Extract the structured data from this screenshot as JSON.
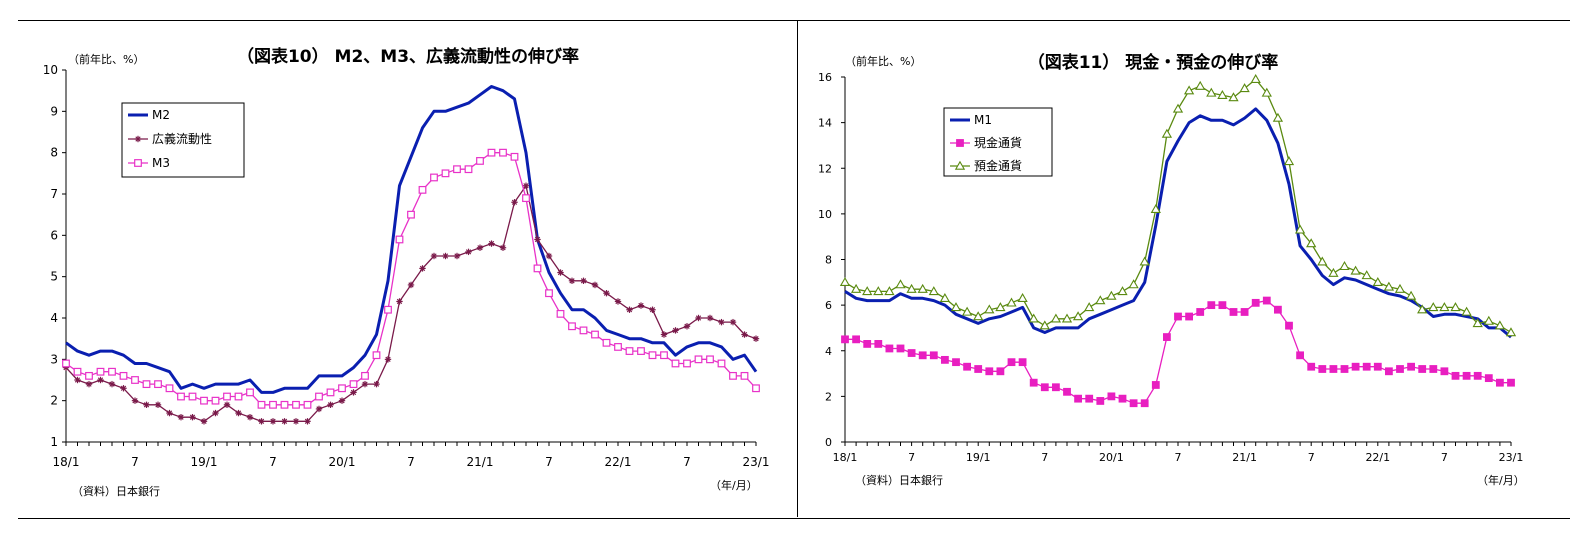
{
  "chart_data": [
    {
      "type": "line",
      "title": "（図表10） M2、M3、広義流動性の伸び率",
      "unit_label": "（前年比、%）",
      "source": "（資料）日本銀行",
      "x_unit_label": "（年/月）",
      "ylim": [
        1,
        10
      ],
      "y_ticks": [
        "1",
        "2",
        "3",
        "4",
        "5",
        "6",
        "7",
        "8",
        "9",
        "10"
      ],
      "x_tick_labels": [
        "18/1",
        "7",
        "19/1",
        "7",
        "20/1",
        "7",
        "21/1",
        "7",
        "22/1",
        "7",
        "23/1"
      ],
      "x": [
        "18/1",
        "18/2",
        "18/3",
        "18/4",
        "18/5",
        "18/6",
        "18/7",
        "18/8",
        "18/9",
        "18/10",
        "18/11",
        "18/12",
        "19/1",
        "19/2",
        "19/3",
        "19/4",
        "19/5",
        "19/6",
        "19/7",
        "19/8",
        "19/9",
        "19/10",
        "19/11",
        "19/12",
        "20/1",
        "20/2",
        "20/3",
        "20/4",
        "20/5",
        "20/6",
        "20/7",
        "20/8",
        "20/9",
        "20/10",
        "20/11",
        "20/12",
        "21/1",
        "21/2",
        "21/3",
        "21/4",
        "21/5",
        "21/6",
        "21/7",
        "21/8",
        "21/9",
        "21/10",
        "21/11",
        "21/12",
        "22/1",
        "22/2",
        "22/3",
        "22/4",
        "22/5",
        "22/6",
        "22/7",
        "22/8",
        "22/9",
        "22/10",
        "22/11",
        "22/12",
        "23/1"
      ],
      "grid": false,
      "legend_position": "top-left",
      "series": [
        {
          "name": "M2",
          "color": "#0a1fb0",
          "marker": "none",
          "values": [
            3.4,
            3.2,
            3.1,
            3.2,
            3.2,
            3.1,
            2.9,
            2.9,
            2.8,
            2.7,
            2.3,
            2.4,
            2.3,
            2.4,
            2.4,
            2.4,
            2.5,
            2.2,
            2.2,
            2.3,
            2.3,
            2.3,
            2.6,
            2.6,
            2.6,
            2.8,
            3.1,
            3.6,
            4.9,
            7.2,
            7.9,
            8.6,
            9.0,
            9.0,
            9.1,
            9.2,
            9.4,
            9.6,
            9.5,
            9.3,
            8.0,
            5.9,
            5.1,
            4.6,
            4.2,
            4.2,
            4.0,
            3.7,
            3.6,
            3.5,
            3.5,
            3.4,
            3.4,
            3.1,
            3.3,
            3.4,
            3.4,
            3.3,
            3.0,
            3.1,
            2.7
          ]
        },
        {
          "name": "広義流動性",
          "color": "#7a1a4a",
          "marker": "asterisk",
          "values": [
            2.8,
            2.5,
            2.4,
            2.5,
            2.4,
            2.3,
            2.0,
            1.9,
            1.9,
            1.7,
            1.6,
            1.6,
            1.5,
            1.7,
            1.9,
            1.7,
            1.6,
            1.5,
            1.5,
            1.5,
            1.5,
            1.5,
            1.8,
            1.9,
            2.0,
            2.2,
            2.4,
            2.4,
            3.0,
            4.4,
            4.8,
            5.2,
            5.5,
            5.5,
            5.5,
            5.6,
            5.7,
            5.8,
            5.7,
            6.8,
            7.2,
            5.9,
            5.5,
            5.1,
            4.9,
            4.9,
            4.8,
            4.6,
            4.4,
            4.2,
            4.3,
            4.2,
            3.6,
            3.7,
            3.8,
            4.0,
            4.0,
            3.9,
            3.9,
            3.6,
            3.5
          ]
        },
        {
          "name": "M3",
          "color": "#e832c8",
          "marker": "square-open",
          "values": [
            2.9,
            2.7,
            2.6,
            2.7,
            2.7,
            2.6,
            2.5,
            2.4,
            2.4,
            2.3,
            2.1,
            2.1,
            2.0,
            2.0,
            2.1,
            2.1,
            2.2,
            1.9,
            1.9,
            1.9,
            1.9,
            1.9,
            2.1,
            2.2,
            2.3,
            2.4,
            2.6,
            3.1,
            4.2,
            5.9,
            6.5,
            7.1,
            7.4,
            7.5,
            7.6,
            7.6,
            7.8,
            8.0,
            8.0,
            7.9,
            6.9,
            5.2,
            4.6,
            4.1,
            3.8,
            3.7,
            3.6,
            3.4,
            3.3,
            3.2,
            3.2,
            3.1,
            3.1,
            2.9,
            2.9,
            3.0,
            3.0,
            2.9,
            2.6,
            2.6,
            2.3
          ]
        }
      ]
    },
    {
      "type": "line",
      "title": "（図表11） 現金・預金の伸び率",
      "unit_label": "（前年比、%）",
      "source": "（資料）日本銀行",
      "x_unit_label": "（年/月）",
      "ylim": [
        0,
        16
      ],
      "y_ticks": [
        "0",
        "2",
        "4",
        "6",
        "8",
        "10",
        "12",
        "14",
        "16"
      ],
      "x_tick_labels": [
        "18/1",
        "7",
        "19/1",
        "7",
        "20/1",
        "7",
        "21/1",
        "7",
        "22/1",
        "7",
        "23/1"
      ],
      "x": [
        "18/1",
        "18/2",
        "18/3",
        "18/4",
        "18/5",
        "18/6",
        "18/7",
        "18/8",
        "18/9",
        "18/10",
        "18/11",
        "18/12",
        "19/1",
        "19/2",
        "19/3",
        "19/4",
        "19/5",
        "19/6",
        "19/7",
        "19/8",
        "19/9",
        "19/10",
        "19/11",
        "19/12",
        "20/1",
        "20/2",
        "20/3",
        "20/4",
        "20/5",
        "20/6",
        "20/7",
        "20/8",
        "20/9",
        "20/10",
        "20/11",
        "20/12",
        "21/1",
        "21/2",
        "21/3",
        "21/4",
        "21/5",
        "21/6",
        "21/7",
        "21/8",
        "21/9",
        "21/10",
        "21/11",
        "21/12",
        "22/1",
        "22/2",
        "22/3",
        "22/4",
        "22/5",
        "22/6",
        "22/7",
        "22/8",
        "22/9",
        "22/10",
        "22/11",
        "22/12",
        "23/1"
      ],
      "grid": false,
      "legend_position": "top-left",
      "series": [
        {
          "name": "M1",
          "color": "#0a1fb0",
          "marker": "none",
          "values": [
            6.6,
            6.3,
            6.2,
            6.2,
            6.2,
            6.5,
            6.3,
            6.3,
            6.2,
            6.0,
            5.6,
            5.4,
            5.2,
            5.4,
            5.5,
            5.7,
            5.9,
            5.0,
            4.8,
            5.0,
            5.0,
            5.0,
            5.4,
            5.6,
            5.8,
            6.0,
            6.2,
            7.0,
            9.5,
            12.3,
            13.2,
            14.0,
            14.3,
            14.1,
            14.1,
            13.9,
            14.2,
            14.6,
            14.1,
            13.1,
            11.3,
            8.6,
            8.0,
            7.3,
            6.9,
            7.2,
            7.1,
            6.9,
            6.7,
            6.5,
            6.4,
            6.2,
            5.9,
            5.5,
            5.6,
            5.6,
            5.5,
            5.4,
            5.0,
            5.0,
            4.6
          ]
        },
        {
          "name": "現金通貨",
          "color": "#e81fc0",
          "marker": "square-filled",
          "values": [
            4.5,
            4.5,
            4.3,
            4.3,
            4.1,
            4.1,
            3.9,
            3.8,
            3.8,
            3.6,
            3.5,
            3.3,
            3.2,
            3.1,
            3.1,
            3.5,
            3.5,
            2.6,
            2.4,
            2.4,
            2.2,
            1.9,
            1.9,
            1.8,
            2.0,
            1.9,
            1.7,
            1.7,
            2.5,
            4.6,
            5.5,
            5.5,
            5.7,
            6.0,
            6.0,
            5.7,
            5.7,
            6.1,
            6.2,
            5.8,
            5.1,
            3.8,
            3.3,
            3.2,
            3.2,
            3.2,
            3.3,
            3.3,
            3.3,
            3.1,
            3.2,
            3.3,
            3.2,
            3.2,
            3.1,
            2.9,
            2.9,
            2.9,
            2.8,
            2.6,
            2.6
          ]
        },
        {
          "name": "預金通貨",
          "color": "#5a8a10",
          "marker": "triangle-open",
          "values": [
            7.0,
            6.7,
            6.6,
            6.6,
            6.6,
            6.9,
            6.7,
            6.7,
            6.6,
            6.3,
            5.9,
            5.7,
            5.5,
            5.8,
            5.9,
            6.1,
            6.3,
            5.4,
            5.1,
            5.4,
            5.4,
            5.5,
            5.9,
            6.2,
            6.4,
            6.6,
            6.9,
            7.9,
            10.2,
            13.5,
            14.6,
            15.4,
            15.6,
            15.3,
            15.2,
            15.1,
            15.5,
            15.9,
            15.3,
            14.2,
            12.3,
            9.3,
            8.7,
            7.9,
            7.4,
            7.7,
            7.5,
            7.3,
            7.0,
            6.8,
            6.7,
            6.4,
            5.8,
            5.9,
            5.9,
            5.9,
            5.7,
            5.2,
            5.3,
            5.1,
            4.8
          ]
        }
      ]
    }
  ]
}
